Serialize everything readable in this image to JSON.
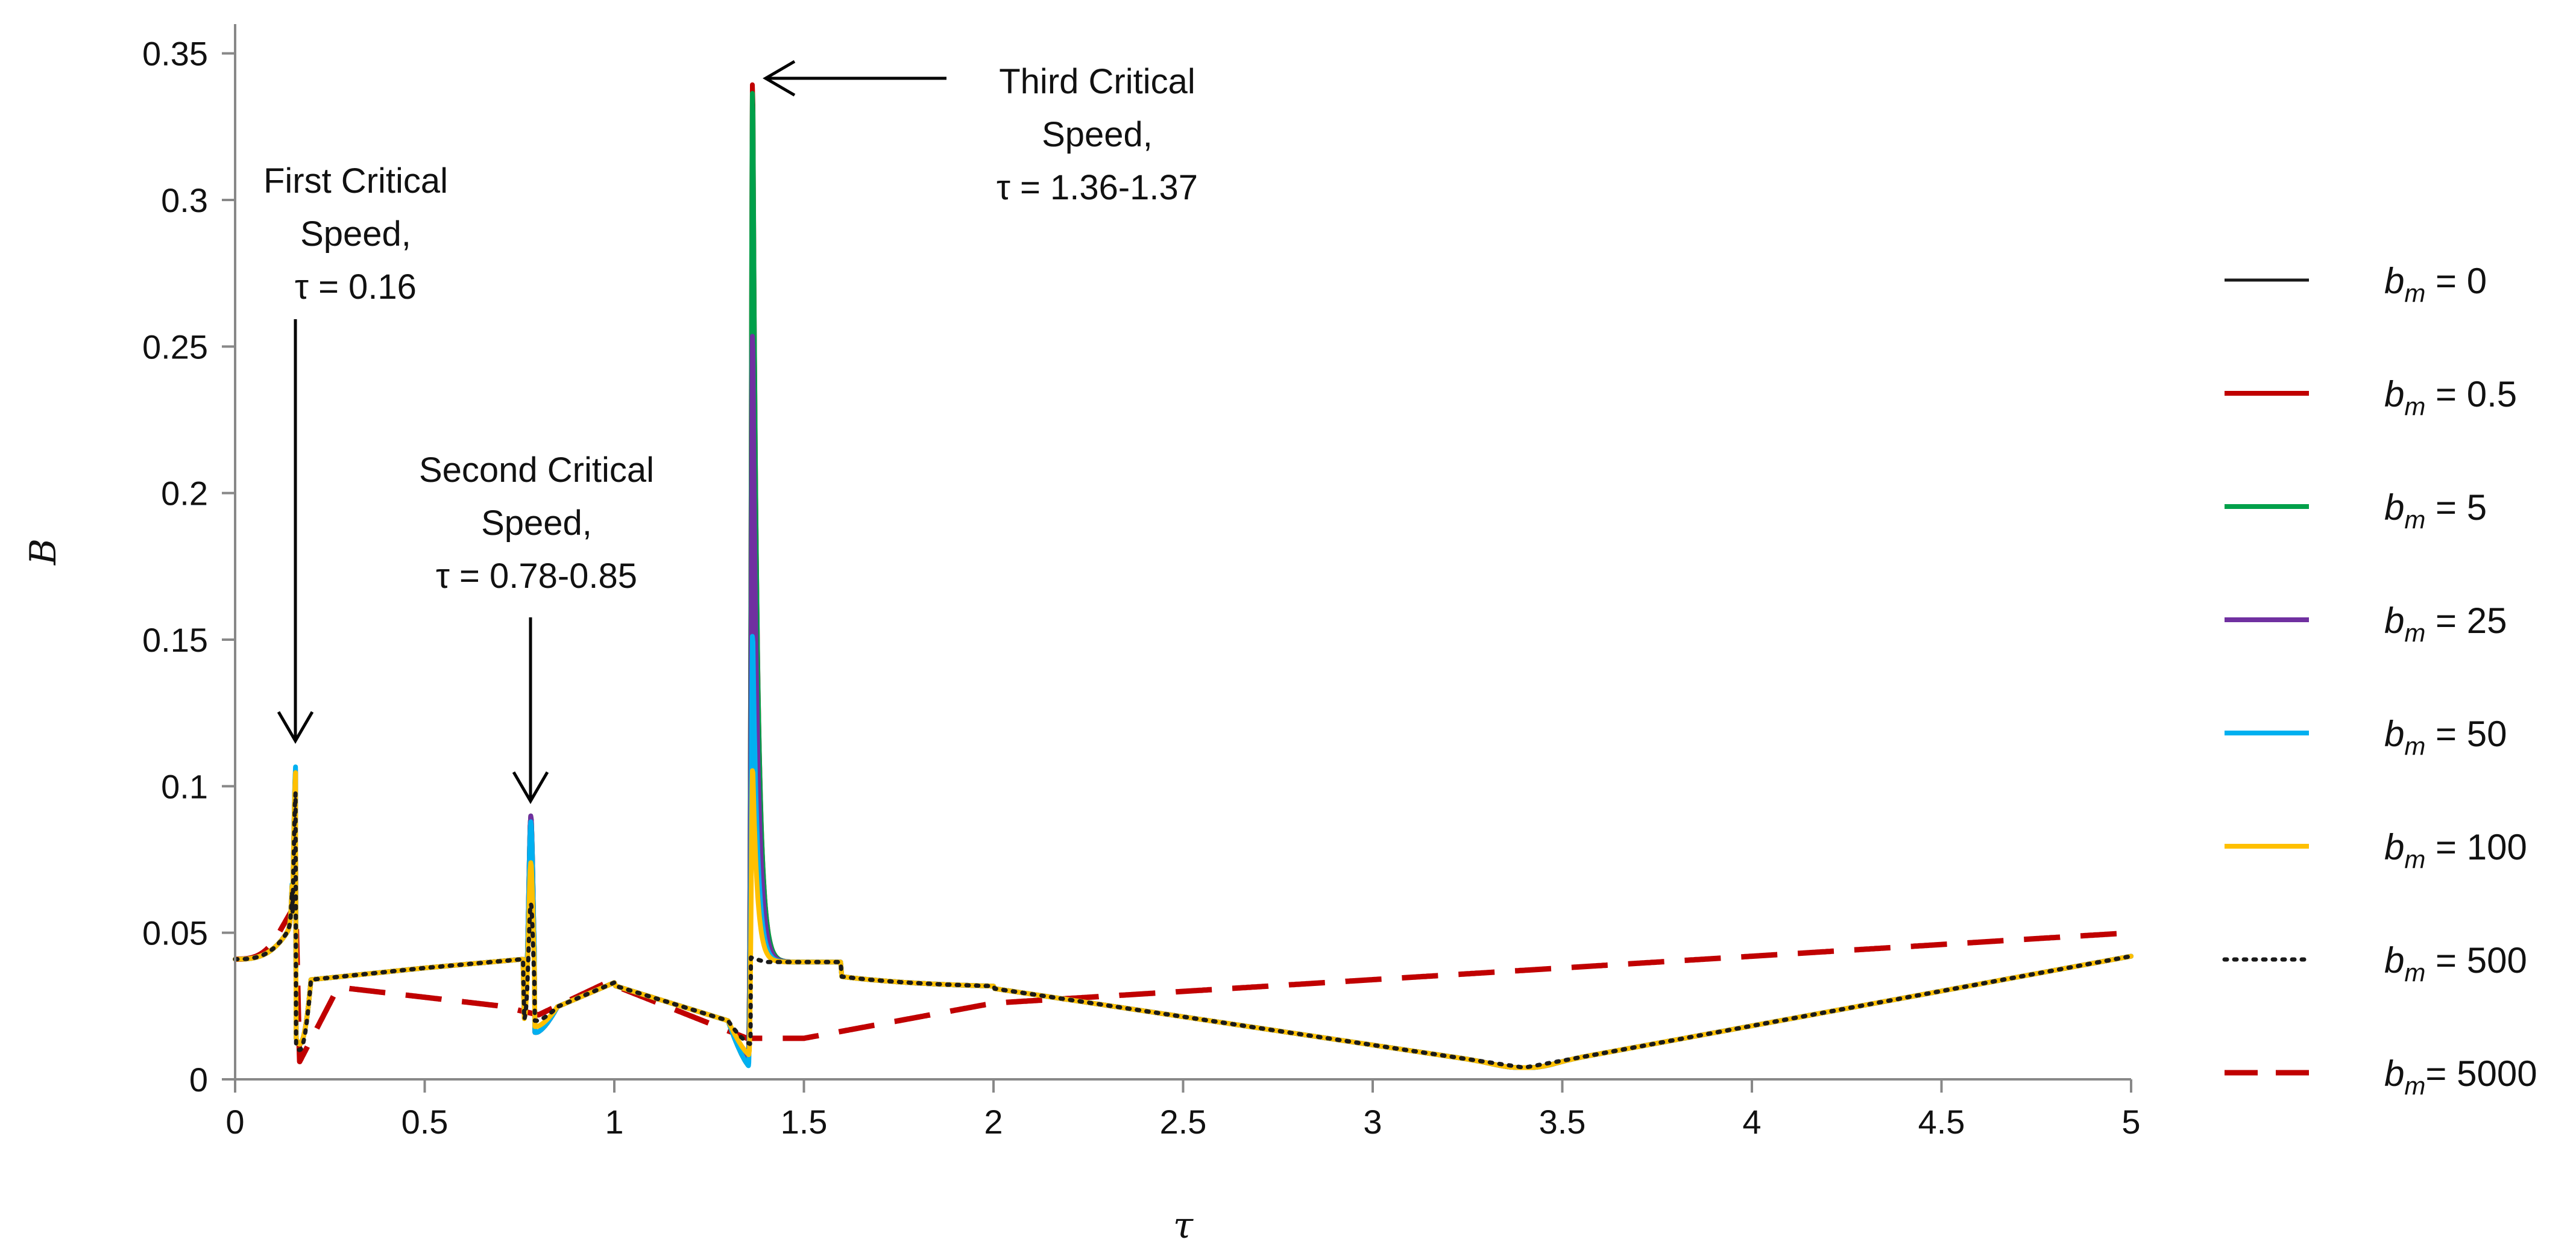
{
  "chart_data": {
    "type": "line",
    "title": "",
    "xlabel": "τ",
    "ylabel": "B",
    "xlim": [
      0,
      5
    ],
    "ylim": [
      0,
      0.36
    ],
    "x_ticks": [
      0,
      0.5,
      1,
      1.5,
      2,
      2.5,
      3,
      3.5,
      4,
      4.5,
      5
    ],
    "x_tick_labels": [
      "0",
      "0.5",
      "1",
      "1.5",
      "2",
      "2.5",
      "3",
      "3.5",
      "4",
      "4.5",
      "5"
    ],
    "y_ticks": [
      0,
      0.05,
      0.1,
      0.15,
      0.2,
      0.25,
      0.3,
      0.35
    ],
    "y_tick_labels": [
      "0",
      "0.05",
      "0.1",
      "0.15",
      "0.2",
      "0.25",
      "0.3",
      "0.35"
    ],
    "grid": false,
    "legend_position": "right",
    "annotations": [
      {
        "id": "first",
        "lines": [
          "First Critical",
          "Speed,",
          "τ = 0.16"
        ],
        "x": 0.16,
        "y": 0.108
      },
      {
        "id": "second",
        "lines": [
          "Second Critical",
          "Speed,",
          "τ = 0.78-0.85"
        ],
        "x": 0.78,
        "y": 0.092
      },
      {
        "id": "third",
        "lines": [
          "Third Critical",
          "Speed,",
          "τ = 1.36-1.37"
        ],
        "x": 1.36,
        "y": 0.35
      }
    ],
    "series": [
      {
        "name": "bm = 0",
        "label_var": "b",
        "label_sub": "m",
        "label_rest": " = 0",
        "color": "#1a1a1a",
        "dash": "solid",
        "stroke_width": 5,
        "peaks": [
          0.105,
          0.09,
          0.345
        ],
        "dips": [
          0.012,
          0.016,
          0.004,
          0.004
        ],
        "smooth": false
      },
      {
        "name": "bm = 0.5",
        "label_var": "b",
        "label_sub": "m",
        "label_rest": " = 0.5",
        "color": "#c00000",
        "dash": "solid",
        "stroke_width": 8,
        "peaks": [
          0.105,
          0.09,
          0.348
        ],
        "dips": [
          0.012,
          0.016,
          0.004,
          0.004
        ],
        "smooth": false
      },
      {
        "name": "bm = 5",
        "label_var": "b",
        "label_sub": "m",
        "label_rest": " = 5",
        "color": "#00a04a",
        "dash": "solid",
        "stroke_width": 8,
        "peaks": [
          0.105,
          0.09,
          0.345
        ],
        "dips": [
          0.012,
          0.016,
          0.004,
          0.004
        ],
        "smooth": false
      },
      {
        "name": "bm = 25",
        "label_var": "b",
        "label_sub": "m",
        "label_rest": " = 25",
        "color": "#7030a0",
        "dash": "solid",
        "stroke_width": 8,
        "peaks": [
          0.106,
          0.09,
          0.26
        ],
        "dips": [
          0.012,
          0.016,
          0.005,
          0.004
        ],
        "smooth": false
      },
      {
        "name": "bm = 50",
        "label_var": "b",
        "label_sub": "m",
        "label_rest": " = 50",
        "color": "#00b0f0",
        "dash": "solid",
        "stroke_width": 8,
        "peaks": [
          0.107,
          0.088,
          0.155
        ],
        "dips": [
          0.012,
          0.016,
          0.004,
          0.004
        ],
        "smooth": false
      },
      {
        "name": "bm = 100",
        "label_var": "b",
        "label_sub": "m",
        "label_rest": " = 100",
        "color": "#ffc000",
        "dash": "solid",
        "stroke_width": 8,
        "peaks": [
          0.105,
          0.074,
          0.108
        ],
        "dips": [
          0.012,
          0.018,
          0.008,
          0.004
        ],
        "smooth": false
      },
      {
        "name": "bm = 500",
        "label_var": "b",
        "label_sub": "m",
        "label_rest": " = 500",
        "color": "#1a1a1a",
        "dash": "dotted",
        "stroke_width": 7,
        "peaks": [
          0.098,
          0.06,
          0.04
        ],
        "dips": [
          0.01,
          0.02,
          0.012,
          0.01
        ],
        "smooth": false
      },
      {
        "name": "bm= 5000",
        "label_var": "b",
        "label_sub": "m",
        "label_rest": "= 5000",
        "color": "#c00000",
        "dash": "dashed",
        "stroke_width": 9,
        "peaks": [
          0.06,
          0.035,
          0.02
        ],
        "dips": [
          0.006,
          0.022,
          0.014,
          0.033
        ],
        "smooth": true
      }
    ]
  }
}
